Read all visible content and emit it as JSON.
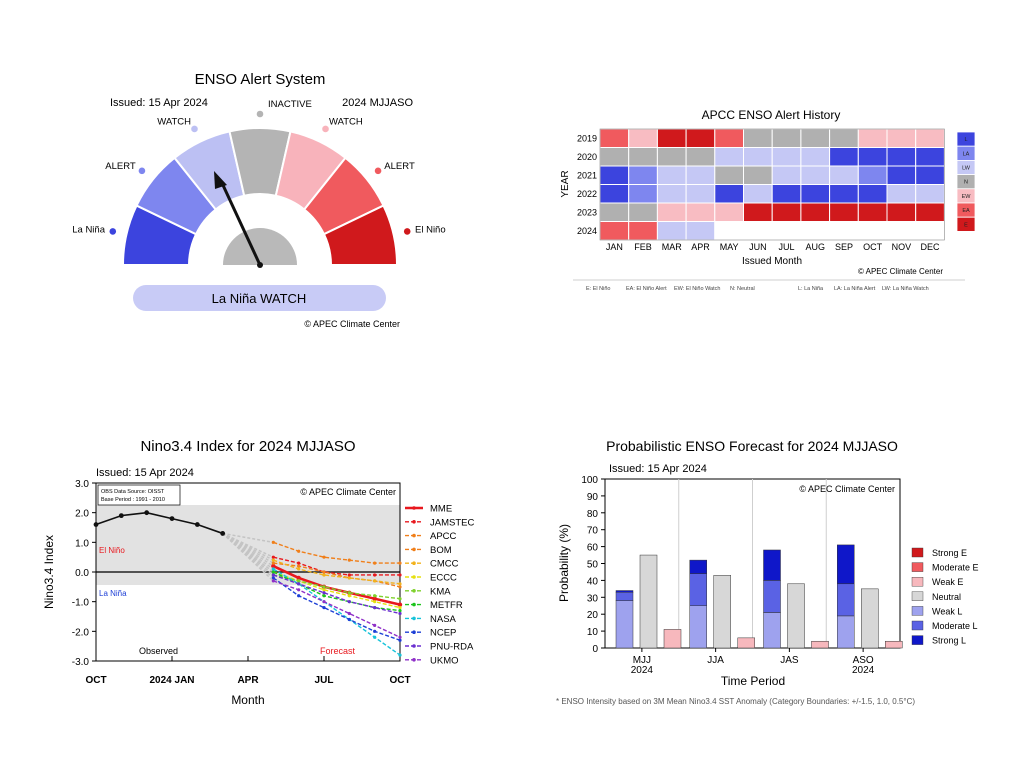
{
  "gauge": {
    "title": "ENSO Alert System",
    "issued": "Issued: 15 Apr 2024",
    "season": "2024 MJJASO",
    "status": "La Niña WATCH",
    "credit": "© APEC Climate Center",
    "levels": [
      {
        "label": "La Niña",
        "color": "#3c44de"
      },
      {
        "label": "ALERT",
        "color": "#7e86ef"
      },
      {
        "label": "WATCH",
        "color": "#bcc0f3"
      },
      {
        "label": "INACTIVE",
        "color": "#b4b4b4"
      },
      {
        "label": "WATCH",
        "color": "#f8b3bb"
      },
      {
        "label": "ALERT",
        "color": "#f05a5e"
      },
      {
        "label": "El Niño",
        "color": "#d0191c"
      }
    ],
    "needle_level": "La Niña WATCH"
  },
  "history": {
    "title": "APCC ENSO Alert History",
    "ylabel": "YEAR",
    "xlabel": "Issued Month",
    "credit": "© APEC Climate Center",
    "legend_note": [
      "E: El Niño",
      "EA: El Niño Alert",
      "EW: El Niño Watch",
      "N: Neutral",
      "L: La Niña",
      "LA: La Niña Alert",
      "LW: La Niña Watch"
    ]
  },
  "nino": {
    "title": "Nino3.4 Index for 2024 MJJASO",
    "issued": "Issued: 15 Apr 2024",
    "source_line1": "OBS Data Source: OISST",
    "source_line2": "Base Period : 1991 - 2010",
    "credit": "© APEC Climate Center",
    "el_nino": "El Niño",
    "la_nina": "La Niña",
    "observed": "Observed",
    "forecast": "Forecast"
  },
  "prob": {
    "title": "Probabilistic ENSO Forecast for 2024 MJJASO",
    "issued": "Issued: 15 Apr 2024",
    "credit": "© APEC Climate Center",
    "footnote": "* ENSO Intensity based on 3M Mean Nino3.4 SST Anomaly (Category Boundaries: +/-1.5, 1.0, 0.5°C)"
  },
  "chart_data": [
    {
      "type": "gauge",
      "title": "ENSO Alert System",
      "categories": [
        "La Niña",
        "ALERT",
        "WATCH",
        "INACTIVE",
        "WATCH",
        "ALERT",
        "El Niño"
      ],
      "value": "La Niña WATCH"
    },
    {
      "type": "heatmap",
      "title": "APCC ENSO Alert History",
      "xlabel": "Issued Month",
      "ylabel": "YEAR",
      "x": [
        "JAN",
        "FEB",
        "MAR",
        "APR",
        "MAY",
        "JUN",
        "JUL",
        "AUG",
        "SEP",
        "OCT",
        "NOV",
        "DEC"
      ],
      "y": [
        "2019",
        "2020",
        "2021",
        "2022",
        "2023",
        "2024"
      ],
      "values": [
        [
          "EA",
          "EW",
          "E",
          "E",
          "EA",
          "N",
          "N",
          "N",
          "N",
          "EW",
          "EW",
          "EW"
        ],
        [
          "N",
          "N",
          "N",
          "N",
          "LW",
          "LW",
          "LW",
          "LW",
          "L",
          "L",
          "L",
          "L"
        ],
        [
          "L",
          "LA",
          "LW",
          "LW",
          "N",
          "N",
          "LW",
          "LW",
          "LW",
          "LA",
          "L",
          "L"
        ],
        [
          "L",
          "LA",
          "LW",
          "LW",
          "L",
          "LW",
          "L",
          "L",
          "L",
          "L",
          "LW",
          "LW"
        ],
        [
          "N",
          "N",
          "EW",
          "EW",
          "EW",
          "E",
          "E",
          "E",
          "E",
          "E",
          "E",
          "E"
        ],
        [
          "EA",
          "EA",
          "LW",
          "LW",
          "",
          "",
          "",
          "",
          "",
          "",
          "",
          ""
        ]
      ],
      "legend": [
        {
          "code": "L",
          "color": "#3c44de"
        },
        {
          "code": "LA",
          "color": "#7e86ef"
        },
        {
          "code": "LW",
          "color": "#c5c8f5"
        },
        {
          "code": "N",
          "color": "#b0b0b0"
        },
        {
          "code": "EW",
          "color": "#f8bcc2"
        },
        {
          "code": "EA",
          "color": "#f05a5e"
        },
        {
          "code": "E",
          "color": "#d0191c"
        }
      ]
    },
    {
      "type": "line",
      "title": "Nino3.4 Index for 2024 MJJASO",
      "xlabel": "Month",
      "ylabel": "Nino3.4 Index",
      "x_ticks": [
        "OCT",
        "2024 JAN",
        "APR",
        "JUL",
        "OCT"
      ],
      "ylim": [
        -3.0,
        3.0
      ],
      "y_ticks": [
        "3.0",
        "2.0",
        "1.0",
        "0.0",
        "-1.0",
        "-2.0",
        "-3.0"
      ],
      "observed": {
        "x": [
          "2023-10",
          "2023-11",
          "2023-12",
          "2024-01",
          "2024-02",
          "2024-03"
        ],
        "values": [
          1.6,
          1.9,
          2.0,
          1.8,
          1.6,
          1.3
        ]
      },
      "forecast_x": [
        "2024-05",
        "2024-06",
        "2024-07",
        "2024-08",
        "2024-09",
        "2024-10"
      ],
      "series": [
        {
          "name": "MME",
          "color": "#e8181e",
          "values": [
            0.2,
            -0.2,
            -0.5,
            -0.7,
            -0.9,
            -1.1
          ]
        },
        {
          "name": "JAMSTEC",
          "color": "#e8181e",
          "values": [
            0.5,
            0.3,
            0.0,
            -0.1,
            -0.1,
            -0.1
          ]
        },
        {
          "name": "APCC",
          "color": "#f07f1a",
          "values": [
            1.0,
            0.7,
            0.5,
            0.4,
            0.3,
            0.3
          ]
        },
        {
          "name": "BOM",
          "color": "#f07f1a",
          "values": [
            0.3,
            0.2,
            0.0,
            -0.2,
            -0.3,
            -0.5
          ]
        },
        {
          "name": "CMCC",
          "color": "#f2b21c",
          "values": [
            0.4,
            0.1,
            -0.1,
            -0.2,
            -0.3,
            -0.4
          ]
        },
        {
          "name": "ECCC",
          "color": "#e6e010",
          "values": [
            0.0,
            -0.3,
            -0.6,
            -0.8,
            -1.0,
            -1.2
          ]
        },
        {
          "name": "KMA",
          "color": "#7fd12c",
          "values": [
            -0.1,
            -0.3,
            -0.5,
            -0.7,
            -0.8,
            -0.9
          ]
        },
        {
          "name": "METFR",
          "color": "#1cc41c",
          "values": [
            0.0,
            -0.4,
            -0.8,
            -1.0,
            -1.2,
            -1.3
          ]
        },
        {
          "name": "NASA",
          "color": "#17c3d9",
          "values": [
            0.1,
            -0.4,
            -1.0,
            -1.6,
            -2.2,
            -2.8
          ]
        },
        {
          "name": "NCEP",
          "color": "#1d3fd6",
          "values": [
            -0.2,
            -0.8,
            -1.2,
            -1.6,
            -2.0,
            -2.3
          ]
        },
        {
          "name": "PNU-RDA",
          "color": "#6a2fd0",
          "values": [
            -0.1,
            -0.4,
            -0.7,
            -1.0,
            -1.2,
            -1.4
          ]
        },
        {
          "name": "UKMO",
          "color": "#8f30c8",
          "values": [
            -0.3,
            -0.6,
            -1.0,
            -1.4,
            -1.8,
            -2.2
          ]
        }
      ]
    },
    {
      "type": "bar",
      "title": "Probabilistic ENSO Forecast for 2024 MJJASO",
      "xlabel": "Time Period",
      "ylabel": "Probability (%)",
      "ylim": [
        0,
        100
      ],
      "y_ticks": [
        "0",
        "10",
        "20",
        "30",
        "40",
        "50",
        "60",
        "70",
        "80",
        "90",
        "100"
      ],
      "categories": [
        "MJJ\n2024",
        "JJA",
        "JAS",
        "ASO\n2024"
      ],
      "la_nina_stack": [
        {
          "name": "Weak L",
          "color": "#9ea2ee",
          "values": [
            28,
            25,
            21,
            19
          ]
        },
        {
          "name": "Moderate L",
          "color": "#5a62e4",
          "values": [
            5,
            19,
            19,
            19
          ]
        },
        {
          "name": "Strong L",
          "color": "#0f17c9",
          "values": [
            1,
            8,
            18,
            23
          ]
        }
      ],
      "neutral": {
        "name": "Neutral",
        "color": "#d7d7d7",
        "values": [
          55,
          43,
          38,
          35
        ]
      },
      "el_nino_stack": [
        {
          "name": "Weak E",
          "color": "#f7b8bd",
          "values": [
            11,
            6,
            4,
            4
          ]
        },
        {
          "name": "Moderate E",
          "color": "#f05a5e",
          "values": [
            0,
            0,
            0,
            0
          ]
        },
        {
          "name": "Strong E",
          "color": "#d0191c",
          "values": [
            0,
            0,
            0,
            0
          ]
        }
      ],
      "legend_order": [
        "Strong E",
        "Moderate E",
        "Weak E",
        "Neutral",
        "Weak L",
        "Moderate L",
        "Strong L"
      ]
    }
  ]
}
